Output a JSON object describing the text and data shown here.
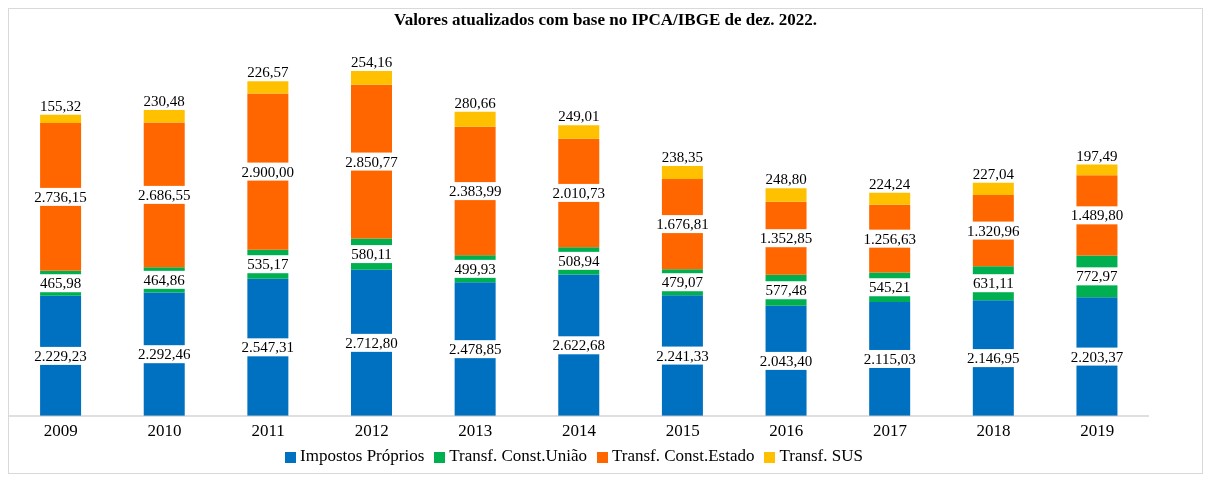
{
  "chart_data": {
    "type": "bar",
    "title": "Valores atualizados com base no IPCA/IBGE de dez. 2022.",
    "stacked": true,
    "legend": "bottom",
    "grid": false,
    "categories": [
      "2009",
      "2010",
      "2011",
      "2012",
      "2013",
      "2014",
      "2015",
      "2016",
      "2017",
      "2018",
      "2019"
    ],
    "series": [
      {
        "name": "Impostos Próprios",
        "color": "#0070c0",
        "values": [
          2229.23,
          2292.46,
          2547.31,
          2712.8,
          2478.85,
          2622.68,
          2241.33,
          2043.4,
          2115.03,
          2146.95,
          2203.37
        ],
        "value_labels": [
          "2.229,23",
          "2.292,46",
          "2.547,31",
          "2.712,80",
          "2.478,85",
          "2.622,68",
          "2.241,33",
          "2.043,40",
          "2.115,03",
          "2.146,95",
          "2.203,37"
        ]
      },
      {
        "name": "Transf. Const.União",
        "color": "#00b050",
        "values": [
          465.98,
          464.86,
          535.17,
          580.11,
          499.93,
          508.94,
          479.07,
          577.48,
          545.21,
          631.11,
          772.97
        ],
        "value_labels": [
          "465,98",
          "464,86",
          "535,17",
          "580,11",
          "499,93",
          "508,94",
          "479,07",
          "577,48",
          "545,21",
          "631,11",
          "772,97"
        ]
      },
      {
        "name": "Transf. Const.Estado",
        "color": "#ff6600",
        "values": [
          2736.15,
          2686.55,
          2900.0,
          2850.77,
          2383.99,
          2010.73,
          1676.81,
          1352.85,
          1256.63,
          1320.96,
          1489.8
        ],
        "value_labels": [
          "2.736,15",
          "2.686,55",
          "2.900,00",
          "2.850,77",
          "2.383,99",
          "2.010,73",
          "1.676,81",
          "1.352,85",
          "1.256,63",
          "1.320,96",
          "1.489,80"
        ]
      },
      {
        "name": "Transf. SUS",
        "color": "#ffc000",
        "values": [
          155.32,
          230.48,
          226.57,
          254.16,
          280.66,
          249.01,
          238.35,
          248.8,
          224.24,
          227.04,
          197.49
        ],
        "value_labels": [
          "155,32",
          "230,48",
          "226,57",
          "254,16",
          "280,66",
          "249,01",
          "238,35",
          "248,80",
          "224,24",
          "227,04",
          "197,49"
        ]
      }
    ]
  }
}
